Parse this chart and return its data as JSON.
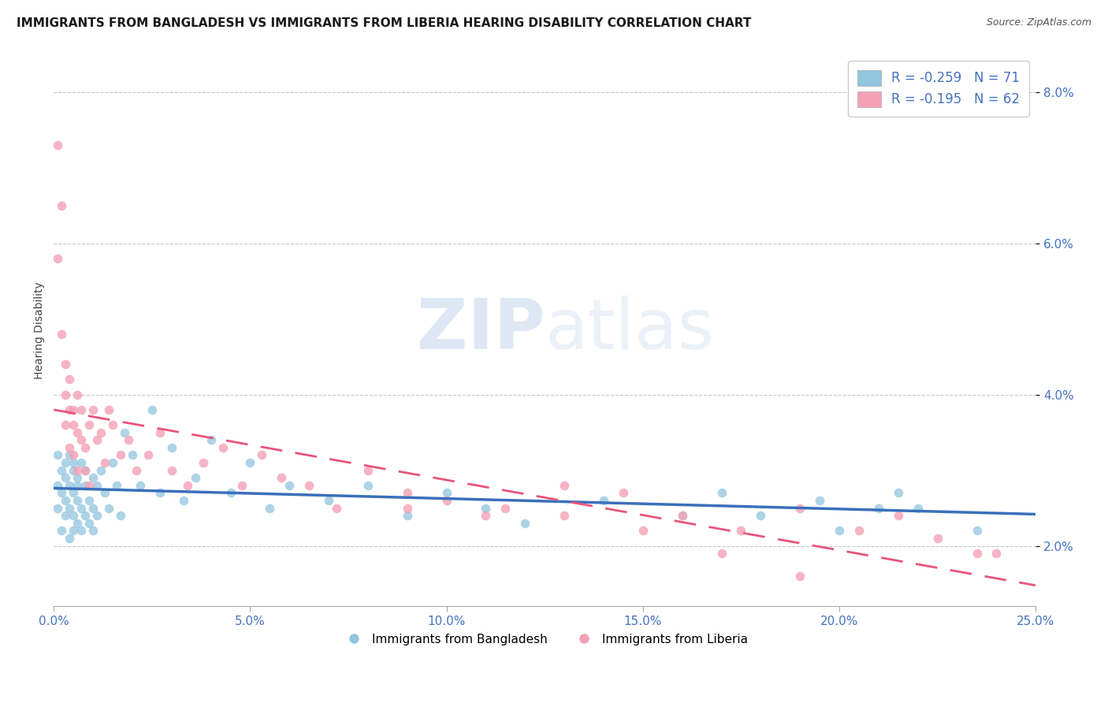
{
  "title": "IMMIGRANTS FROM BANGLADESH VS IMMIGRANTS FROM LIBERIA HEARING DISABILITY CORRELATION CHART",
  "source": "Source: ZipAtlas.com",
  "ylabel": "Hearing Disability",
  "xlim": [
    0.0,
    0.25
  ],
  "ylim": [
    0.012,
    0.085
  ],
  "xticks": [
    0.0,
    0.05,
    0.1,
    0.15,
    0.2,
    0.25
  ],
  "yticks": [
    0.02,
    0.04,
    0.06,
    0.08
  ],
  "ytick_labels": [
    "2.0%",
    "4.0%",
    "6.0%",
    "8.0%"
  ],
  "xtick_labels": [
    "0.0%",
    "5.0%",
    "10.0%",
    "15.0%",
    "20.0%",
    "25.0%"
  ],
  "legend_labels": [
    "Immigrants from Bangladesh",
    "Immigrants from Liberia"
  ],
  "r_bangladesh": -0.259,
  "n_bangladesh": 71,
  "r_liberia": -0.195,
  "n_liberia": 62,
  "color_bangladesh": "#92c5de",
  "color_liberia": "#f4a0b5",
  "line_color_bangladesh": "#3a6fba",
  "line_color_liberia": "#e8547a",
  "background_color": "#ffffff",
  "title_fontsize": 11,
  "axis_label_fontsize": 10,
  "tick_fontsize": 11,
  "bangladesh_x": [
    0.001,
    0.001,
    0.001,
    0.002,
    0.002,
    0.002,
    0.003,
    0.003,
    0.003,
    0.003,
    0.004,
    0.004,
    0.004,
    0.004,
    0.005,
    0.005,
    0.005,
    0.005,
    0.005,
    0.006,
    0.006,
    0.006,
    0.006,
    0.007,
    0.007,
    0.007,
    0.008,
    0.008,
    0.008,
    0.009,
    0.009,
    0.01,
    0.01,
    0.01,
    0.011,
    0.011,
    0.012,
    0.013,
    0.014,
    0.015,
    0.016,
    0.017,
    0.018,
    0.02,
    0.022,
    0.025,
    0.027,
    0.03,
    0.033,
    0.036,
    0.04,
    0.045,
    0.05,
    0.055,
    0.06,
    0.07,
    0.08,
    0.09,
    0.1,
    0.11,
    0.12,
    0.14,
    0.16,
    0.17,
    0.18,
    0.195,
    0.2,
    0.21,
    0.215,
    0.22,
    0.235
  ],
  "bangladesh_y": [
    0.032,
    0.028,
    0.025,
    0.03,
    0.027,
    0.022,
    0.031,
    0.026,
    0.024,
    0.029,
    0.028,
    0.025,
    0.032,
    0.021,
    0.03,
    0.027,
    0.024,
    0.031,
    0.022,
    0.029,
    0.026,
    0.023,
    0.028,
    0.031,
    0.025,
    0.022,
    0.028,
    0.024,
    0.03,
    0.026,
    0.023,
    0.029,
    0.025,
    0.022,
    0.028,
    0.024,
    0.03,
    0.027,
    0.025,
    0.031,
    0.028,
    0.024,
    0.035,
    0.032,
    0.028,
    0.038,
    0.027,
    0.033,
    0.026,
    0.029,
    0.034,
    0.027,
    0.031,
    0.025,
    0.028,
    0.026,
    0.028,
    0.024,
    0.027,
    0.025,
    0.023,
    0.026,
    0.024,
    0.027,
    0.024,
    0.026,
    0.022,
    0.025,
    0.027,
    0.025,
    0.022
  ],
  "liberia_x": [
    0.001,
    0.001,
    0.002,
    0.002,
    0.003,
    0.003,
    0.003,
    0.004,
    0.004,
    0.004,
    0.005,
    0.005,
    0.005,
    0.006,
    0.006,
    0.006,
    0.007,
    0.007,
    0.008,
    0.008,
    0.009,
    0.009,
    0.01,
    0.011,
    0.012,
    0.013,
    0.014,
    0.015,
    0.017,
    0.019,
    0.021,
    0.024,
    0.027,
    0.03,
    0.034,
    0.038,
    0.043,
    0.048,
    0.053,
    0.058,
    0.065,
    0.072,
    0.08,
    0.09,
    0.1,
    0.115,
    0.13,
    0.145,
    0.16,
    0.175,
    0.19,
    0.205,
    0.215,
    0.225,
    0.235,
    0.24,
    0.09,
    0.11,
    0.13,
    0.15,
    0.17,
    0.19
  ],
  "liberia_y": [
    0.073,
    0.058,
    0.065,
    0.048,
    0.044,
    0.04,
    0.036,
    0.038,
    0.033,
    0.042,
    0.036,
    0.032,
    0.038,
    0.035,
    0.03,
    0.04,
    0.034,
    0.038,
    0.033,
    0.03,
    0.036,
    0.028,
    0.038,
    0.034,
    0.035,
    0.031,
    0.038,
    0.036,
    0.032,
    0.034,
    0.03,
    0.032,
    0.035,
    0.03,
    0.028,
    0.031,
    0.033,
    0.028,
    0.032,
    0.029,
    0.028,
    0.025,
    0.03,
    0.027,
    0.026,
    0.025,
    0.024,
    0.027,
    0.024,
    0.022,
    0.025,
    0.022,
    0.024,
    0.021,
    0.019,
    0.019,
    0.025,
    0.024,
    0.028,
    0.022,
    0.019,
    0.016
  ]
}
